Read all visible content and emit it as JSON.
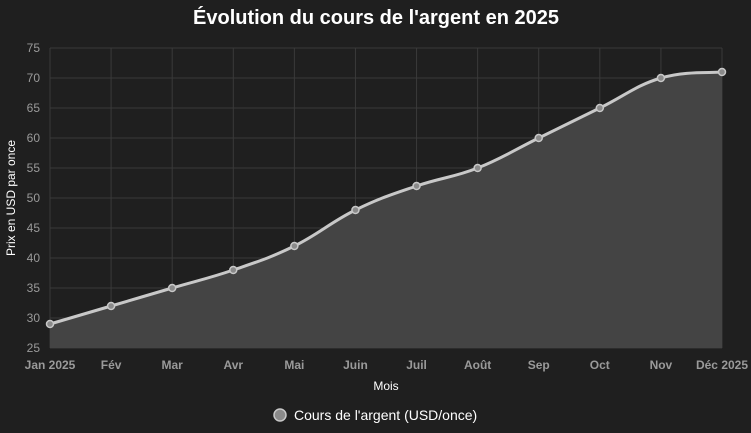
{
  "chart_data": {
    "type": "line",
    "title": "Évolution du cours de l'argent en 2025",
    "xlabel": "Mois",
    "ylabel": "Prix en USD par once",
    "categories": [
      "Jan 2025",
      "Fév",
      "Mar",
      "Avr",
      "Mai",
      "Juin",
      "Juil",
      "Août",
      "Sep",
      "Oct",
      "Nov",
      "Déc 2025"
    ],
    "ylim": [
      25,
      75
    ],
    "yticks": [
      25,
      30,
      35,
      40,
      45,
      50,
      55,
      60,
      65,
      70,
      75
    ],
    "grid": true,
    "legend_position": "bottom",
    "series": [
      {
        "name": "Cours de l'argent (USD/once)",
        "values": [
          29,
          32,
          35,
          38,
          42,
          48,
          52,
          55,
          60,
          65,
          70,
          71
        ],
        "line_color": "#c8c8c8",
        "fill_color": "#444444",
        "point_color": "#8a8a8a"
      }
    ]
  }
}
